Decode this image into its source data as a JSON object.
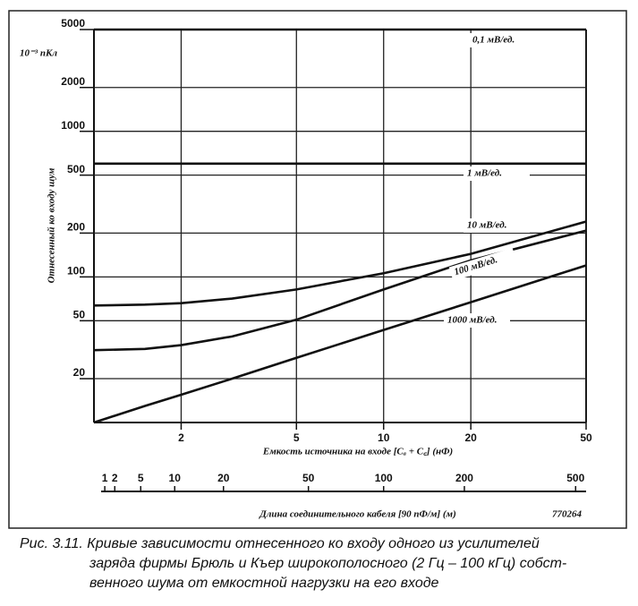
{
  "chart_data": {
    "type": "line",
    "y_label": "Отнесенный ко входу шум",
    "y_unit": "10⁻³ пКл",
    "x_label": "Емкость источника на входе [Cₐ + C꜀] (нФ)",
    "x": [
      1,
      1.5,
      2,
      3,
      5,
      10,
      20,
      50
    ],
    "series": [
      {
        "name": "0,1 мВ/ед.",
        "color": "#111111",
        "values": [
          5000,
          5000,
          5000,
          5000,
          5000,
          5000,
          5000,
          5000
        ]
      },
      {
        "name": "1 мВ/ед.",
        "color": "#111111",
        "values": [
          600,
          600,
          600,
          600,
          600,
          600,
          600,
          600
        ]
      },
      {
        "name": "10 мВ/ед.",
        "color": "#111111",
        "values": [
          63.6,
          64.5,
          66,
          71,
          82,
          106,
          144,
          240
        ]
      },
      {
        "name": "100 мВ/ед.",
        "color": "#111111",
        "values": [
          31.4,
          32,
          34,
          39,
          50.8,
          82,
          130,
          208
        ]
      },
      {
        "name": "1000 мВ/ед.",
        "color": "#111111",
        "values": [
          10,
          13,
          15.5,
          20,
          27.8,
          43.2,
          67,
          120
        ]
      }
    ],
    "xlim": [
      1,
      50
    ],
    "xticks": [
      2,
      5,
      10,
      20,
      50
    ],
    "ylim": [
      10,
      5000
    ],
    "yticks": [
      20,
      50,
      100,
      200,
      500,
      1000,
      2000,
      5000
    ],
    "log_x": true,
    "log_y": true,
    "grid": true,
    "x2_label": "Длина соединительного кабеля [90 пФ/м] (м)",
    "x2ticks": [
      1,
      2,
      5,
      10,
      20,
      50,
      100,
      200,
      500
    ],
    "figure_code": "770264",
    "caption": [
      "Рис. 3.11. Кривые зависимости отнесенного ко входу одного из усилителей",
      "заряда фирмы Брюль и Къер широкополосного (2 Гц – 100 кГц) собст-",
      "венного шума от емкостной нагрузки на его входе"
    ]
  }
}
